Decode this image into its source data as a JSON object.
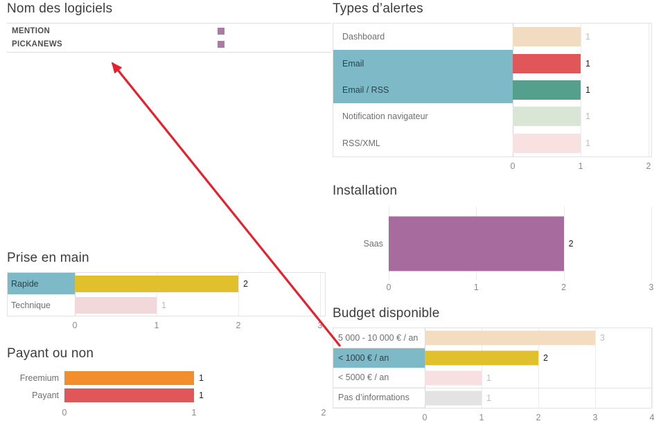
{
  "palette": {
    "highlight_row": "#7db9c7",
    "panel_border": "#e2e2e2",
    "gridline": "#ececec",
    "zero_line": "#d4d4d4",
    "axis_text": "#8a8a8a",
    "label_text": "#6f6f6f",
    "label_text_highlighted": "#323f46",
    "value_text": "#1f1f1f",
    "value_text_muted": "#bdbdbd"
  },
  "annotation": {
    "type": "arrow",
    "color": "#e6212d",
    "points_from": "budget-chart-highlight-row",
    "points_to": "logiciels-list"
  },
  "chart_data": [
    {
      "id": "logiciels",
      "type": "table",
      "title": "Nom des logiciels",
      "rows": [
        {
          "label": "MENTION",
          "marker": "square"
        },
        {
          "label": "PICKANEWS",
          "marker": "square"
        }
      ],
      "marker_color": "#a97ca5"
    },
    {
      "id": "types_alertes",
      "type": "bar",
      "orientation": "horizontal",
      "title": "Types d’alertes",
      "categories": [
        "Dashboard",
        "Email",
        "Email / RSS",
        "Notification navigateur",
        "RSS/XML"
      ],
      "values": [
        1,
        1,
        1,
        1,
        1
      ],
      "bar_colors": [
        "#f2dcc1",
        "#e15759",
        "#55a08d",
        "#d9e6d5",
        "#f8e1e1"
      ],
      "highlighted": [
        false,
        true,
        true,
        false,
        false
      ],
      "value_muted": [
        true,
        false,
        false,
        true,
        true
      ],
      "x_ticks": [
        0,
        1,
        2
      ],
      "xlim": [
        0,
        2
      ]
    },
    {
      "id": "installation",
      "type": "bar",
      "orientation": "horizontal",
      "title": "Installation",
      "categories": [
        "Saas"
      ],
      "values": [
        2
      ],
      "bar_colors": [
        "#a86b9d"
      ],
      "highlighted": [
        false
      ],
      "value_muted": [
        false
      ],
      "x_ticks": [
        0,
        1,
        2,
        3
      ],
      "xlim": [
        0,
        3
      ]
    },
    {
      "id": "prise_en_main",
      "type": "bar",
      "orientation": "horizontal",
      "title": "Prise en main",
      "categories": [
        "Rapide",
        "Technique"
      ],
      "values": [
        2,
        1
      ],
      "bar_colors": [
        "#e0c12d",
        "#f2d8da"
      ],
      "highlighted": [
        true,
        false
      ],
      "value_muted": [
        false,
        true
      ],
      "x_ticks": [
        0,
        1,
        2,
        3
      ],
      "xlim": [
        0,
        3
      ]
    },
    {
      "id": "payant",
      "type": "bar",
      "orientation": "horizontal",
      "title": "Payant ou non",
      "categories": [
        "Freemium",
        "Payant"
      ],
      "values": [
        1,
        1
      ],
      "bar_colors": [
        "#f28e2b",
        "#e15759"
      ],
      "highlighted": [
        false,
        false
      ],
      "value_muted": [
        false,
        false
      ],
      "x_ticks": [
        0,
        1,
        2
      ],
      "xlim": [
        0,
        2
      ]
    },
    {
      "id": "budget",
      "type": "bar",
      "orientation": "horizontal",
      "title": "Budget disponible",
      "categories": [
        "5 000 - 10 000 € / an",
        "< 1000 € / an",
        "< 5000 € / an",
        "Pas d’informations"
      ],
      "values": [
        3,
        2,
        1,
        1
      ],
      "bar_colors": [
        "#f4dcc1",
        "#e0c12d",
        "#f8dfe1",
        "#e3e3e3"
      ],
      "highlighted": [
        false,
        true,
        false,
        false
      ],
      "value_muted": [
        true,
        false,
        true,
        true
      ],
      "x_ticks": [
        0,
        1,
        2,
        3,
        4
      ],
      "xlim": [
        0,
        4
      ]
    }
  ]
}
